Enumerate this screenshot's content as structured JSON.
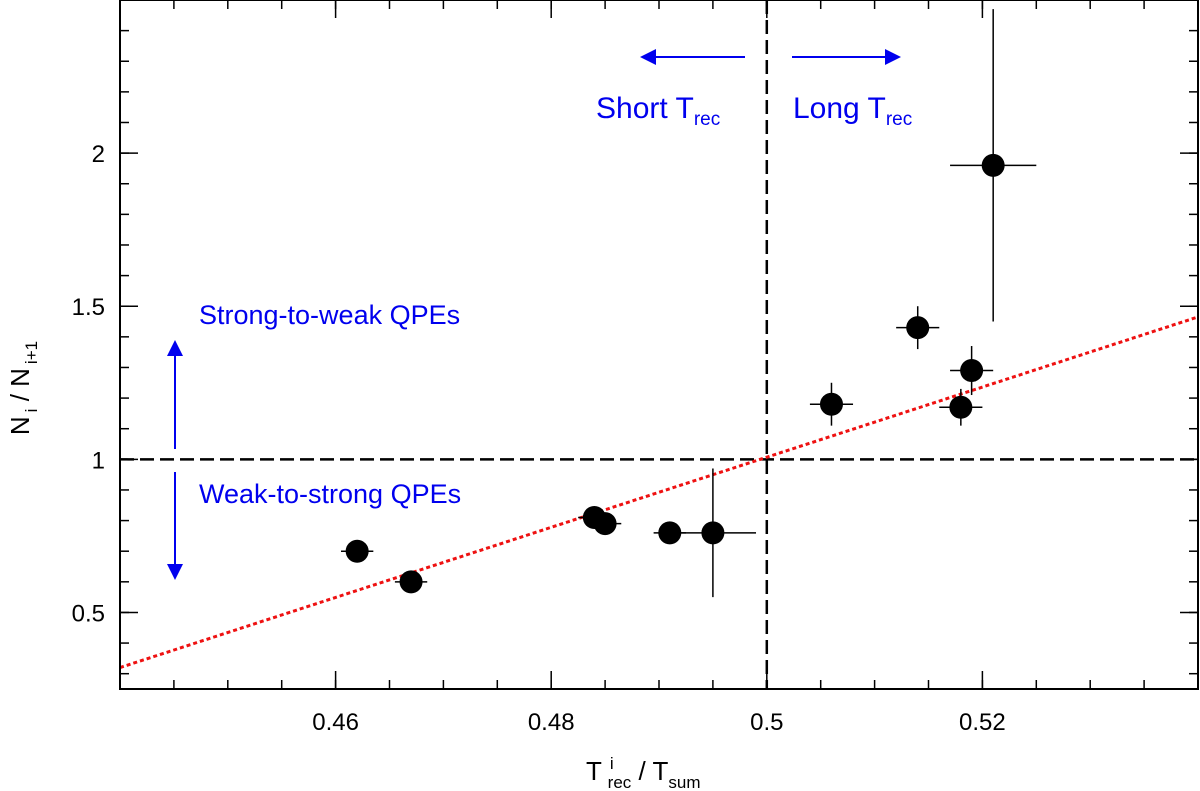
{
  "chart_data": {
    "type": "scatter",
    "xlabel": {
      "main": "T",
      "main_sup": "i",
      "main_sub": "rec",
      "sep": " / ",
      "denom": "T",
      "denom_sub": "sum"
    },
    "ylabel": {
      "num": "N",
      "num_sub": "i",
      "sep": " / ",
      "den": "N",
      "den_sub": "i+1"
    },
    "xlim": [
      0.44,
      0.54
    ],
    "ylim": [
      0.25,
      2.5
    ],
    "x_major_ticks": [
      0.46,
      0.48,
      0.5,
      0.52
    ],
    "x_tick_labels": [
      "0.46",
      "0.48",
      "0.5",
      "0.52"
    ],
    "x_minor_step": 0.005,
    "y_major_ticks": [
      0.5,
      1,
      1.5,
      2
    ],
    "y_tick_labels": [
      "0.5",
      "1",
      "1.5",
      "2"
    ],
    "y_minor_step": 0.1,
    "points": [
      {
        "x": 0.462,
        "y": 0.7,
        "xerr": 0.0015,
        "yerr": 0.0
      },
      {
        "x": 0.467,
        "y": 0.6,
        "xerr": 0.0015,
        "yerr": 0.0
      },
      {
        "x": 0.484,
        "y": 0.81,
        "xerr": 0.0015,
        "yerr": 0.0
      },
      {
        "x": 0.485,
        "y": 0.79,
        "xerr": 0.0015,
        "yerr": 0.0
      },
      {
        "x": 0.491,
        "y": 0.76,
        "xerr": 0.0015,
        "yerr": 0.0
      },
      {
        "x": 0.495,
        "y": 0.76,
        "xerr": 0.004,
        "yerr": 0.21
      },
      {
        "x": 0.506,
        "y": 1.18,
        "xerr": 0.002,
        "yerr": 0.07
      },
      {
        "x": 0.514,
        "y": 1.43,
        "xerr": 0.002,
        "yerr": 0.07
      },
      {
        "x": 0.518,
        "y": 1.17,
        "xerr": 0.002,
        "yerr": 0.06
      },
      {
        "x": 0.519,
        "y": 1.29,
        "xerr": 0.002,
        "yerr": 0.08
      },
      {
        "x": 0.521,
        "y": 1.96,
        "xerr": 0.004,
        "yerr": 0.51
      }
    ],
    "fit_line": {
      "x": [
        0.44,
        0.54
      ],
      "y": [
        0.32,
        1.465
      ],
      "color": "#ee1111",
      "style": "dotted"
    },
    "reference_lines": [
      {
        "orientation": "vertical",
        "value": 0.5,
        "style": "dashed"
      },
      {
        "orientation": "horizontal",
        "value": 1,
        "style": "dashed"
      }
    ],
    "annotation_color": "#0000ee",
    "annotations": {
      "short": {
        "text": "Short T",
        "sub": "rec"
      },
      "long": {
        "text": "Long T",
        "sub": "rec"
      },
      "strong": "Strong-to-weak QPEs",
      "weak": "Weak-to-strong QPEs"
    }
  }
}
